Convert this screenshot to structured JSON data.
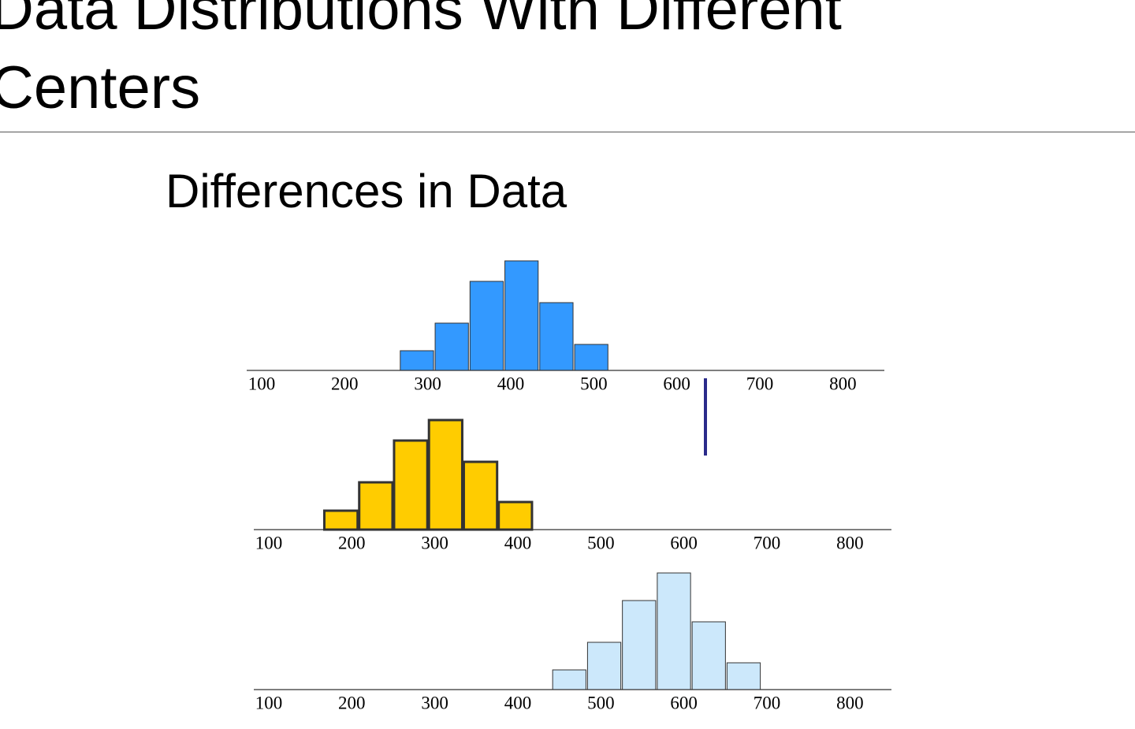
{
  "slide": {
    "title": "Data Distributions With Different Centers",
    "heading": "Differences in Data"
  },
  "chart_data": [
    {
      "type": "histogram",
      "bins": [
        266,
        308,
        350,
        392,
        434,
        476,
        518
      ],
      "values": [
        25,
        60,
        113,
        139,
        86,
        33
      ],
      "color": "#3399ff",
      "edge_color": "#333333",
      "xlim": [
        82,
        850
      ],
      "xticks": [
        100,
        200,
        300,
        400,
        500,
        600,
        700,
        800
      ]
    },
    {
      "type": "histogram",
      "bins": [
        166,
        208,
        250,
        292,
        334,
        376,
        418
      ],
      "values": [
        24,
        60,
        113,
        139,
        86,
        35
      ],
      "color": "#ffcc00",
      "edge_color": "#333333",
      "xlim": [
        82,
        850
      ],
      "xticks": [
        100,
        200,
        300,
        400,
        500,
        600,
        700,
        800
      ]
    },
    {
      "type": "histogram",
      "bins": [
        441,
        483,
        525,
        567,
        609,
        651,
        693
      ],
      "values": [
        25,
        60,
        113,
        148,
        86,
        34
      ],
      "color": "#cce8fb",
      "edge_color": "#333333",
      "xlim": [
        82,
        850
      ],
      "xticks": [
        100,
        200,
        300,
        400,
        500,
        600,
        700,
        800
      ]
    }
  ]
}
